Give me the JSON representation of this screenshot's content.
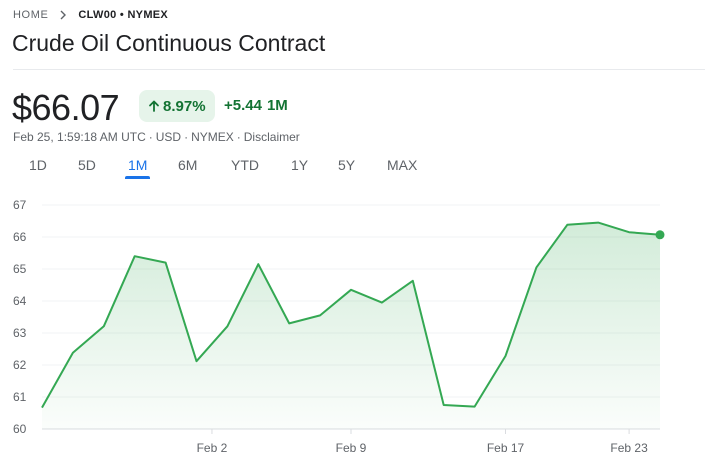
{
  "breadcrumb": {
    "home": "HOME",
    "symbol": "CLW00 • NYMEX"
  },
  "title": "Crude Oil Continuous Contract",
  "quote": {
    "price": "$66.07",
    "change_pct": "8.97%",
    "change_abs": "+5.44",
    "change_period": "1M",
    "timestamp": "Feb 25, 1:59:18 AM UTC",
    "currency": "USD",
    "exchange": "NYMEX",
    "disclaimer": "Disclaimer"
  },
  "separator": "·",
  "tabs": [
    {
      "label": "1D"
    },
    {
      "label": "5D"
    },
    {
      "label": "1M"
    },
    {
      "label": "6M"
    },
    {
      "label": "YTD"
    },
    {
      "label": "1Y"
    },
    {
      "label": "5Y"
    },
    {
      "label": "MAX"
    }
  ],
  "active_tab": "1M",
  "colors": {
    "up_green": "#137333",
    "line_green": "#34a853",
    "accent_blue": "#1a73e8"
  },
  "chart_data": {
    "type": "area",
    "x_ticks": [
      "Feb 2",
      "Feb 9",
      "Feb 17",
      "Feb 23"
    ],
    "ylim": [
      60,
      67
    ],
    "y_ticks": [
      60,
      61,
      62,
      63,
      64,
      65,
      66,
      67
    ],
    "grid": true,
    "points": [
      {
        "x": "Jan 24",
        "y": 60.67
      },
      {
        "x": "Jan 27",
        "y": 62.38
      },
      {
        "x": "Jan 28",
        "y": 63.21
      },
      {
        "x": "Jan 29",
        "y": 65.4
      },
      {
        "x": "Jan 30",
        "y": 65.2
      },
      {
        "x": "Jan 31",
        "y": 62.12
      },
      {
        "x": "Feb 3",
        "y": 63.21
      },
      {
        "x": "Feb 4",
        "y": 65.15
      },
      {
        "x": "Feb 5",
        "y": 63.3
      },
      {
        "x": "Feb 6",
        "y": 63.55
      },
      {
        "x": "Feb 9",
        "y": 64.35
      },
      {
        "x": "Feb 10",
        "y": 63.95
      },
      {
        "x": "Feb 11",
        "y": 64.63
      },
      {
        "x": "Feb 12",
        "y": 60.75
      },
      {
        "x": "Feb 13",
        "y": 60.7
      },
      {
        "x": "Feb 17",
        "y": 62.28
      },
      {
        "x": "Feb 18",
        "y": 65.05
      },
      {
        "x": "Feb 19",
        "y": 66.38
      },
      {
        "x": "Feb 20",
        "y": 66.45
      },
      {
        "x": "Feb 23",
        "y": 66.15
      },
      {
        "x": "Feb 24",
        "y": 66.07
      }
    ]
  }
}
